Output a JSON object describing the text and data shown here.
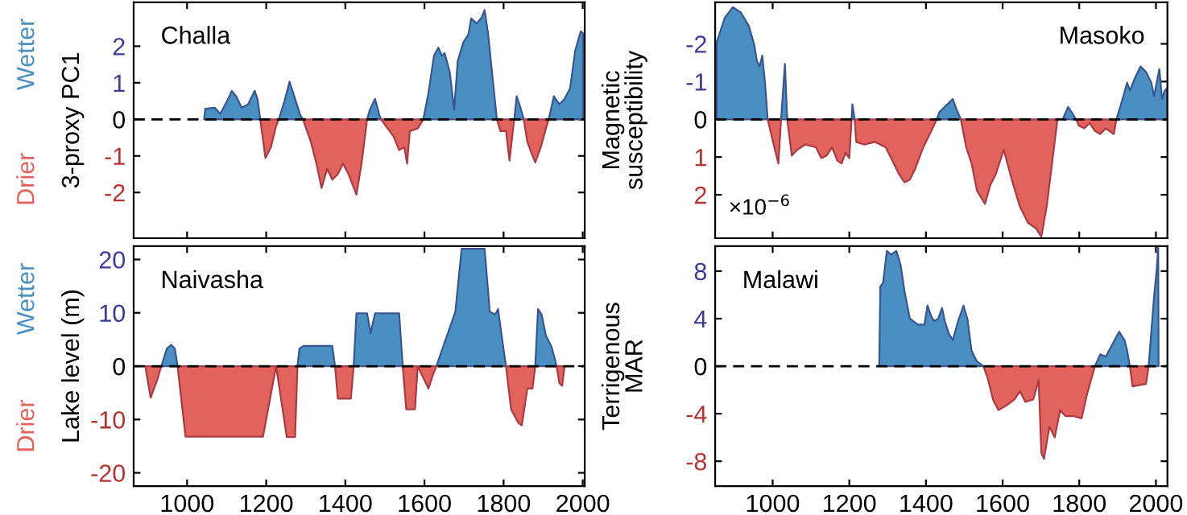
{
  "chart_data": [
    {
      "type": "area",
      "title": "Challa",
      "ylabel": "3-proxy PC1",
      "xlim": [
        865,
        2005
      ],
      "ylim": [
        -3.25,
        3.2
      ],
      "xticks": [
        1000,
        1200,
        1400,
        1600,
        1800,
        2000
      ],
      "yticks": [
        -2,
        -1,
        0,
        1,
        2
      ],
      "tick_labels": "y",
      "ref_lines": [
        {
          "axis": "y",
          "value": 0,
          "line_style": "dashed",
          "color": "#000000"
        }
      ],
      "x": [
        1043,
        1046,
        1070,
        1084,
        1104,
        1113,
        1124,
        1138,
        1154,
        1171,
        1178,
        1185,
        1198,
        1212,
        1225,
        1232,
        1246,
        1259,
        1273,
        1286,
        1293,
        1313,
        1327,
        1340,
        1354,
        1367,
        1381,
        1394,
        1408,
        1428,
        1441,
        1455,
        1462,
        1475,
        1486,
        1490,
        1522,
        1536,
        1549,
        1556,
        1563,
        1583,
        1597,
        1610,
        1624,
        1635,
        1644,
        1651,
        1664,
        1675,
        1684,
        1698,
        1711,
        1718,
        1732,
        1745,
        1752,
        1761,
        1772,
        1783,
        1792,
        1806,
        1815,
        1824,
        1827,
        1833,
        1842,
        1851,
        1860,
        1873,
        1880,
        1894,
        1907,
        1914,
        1927,
        1941,
        1954,
        1968,
        1981,
        1995,
        2001
      ],
      "series": [
        {
          "name": "Wetter",
          "color": "#4a8fc2",
          "values": [
            0,
            0.29,
            0.32,
            0.15,
            0.56,
            0.78,
            0.63,
            0.32,
            0.41,
            0.78,
            0.56,
            0,
            null,
            null,
            null,
            0,
            0.49,
            1.03,
            0.56,
            0.12,
            0,
            null,
            null,
            null,
            null,
            null,
            null,
            null,
            null,
            null,
            null,
            0,
            0.26,
            0.56,
            0.12,
            0,
            null,
            null,
            null,
            null,
            null,
            null,
            0,
            0.71,
            1.74,
            1.96,
            1.74,
            1.81,
            1.29,
            0.26,
            1.59,
            2.1,
            2.32,
            2.76,
            2.62,
            2.79,
            2.99,
            2.32,
            1.15,
            0,
            null,
            null,
            null,
            null,
            0,
            0.63,
            0.34,
            0,
            null,
            null,
            null,
            null,
            null,
            0,
            0.63,
            0.41,
            0.56,
            0.85,
            1.88,
            2.41,
            2.35
          ]
        },
        {
          "name": "Drier",
          "color": "#e2625c",
          "values": [
            null,
            null,
            null,
            null,
            null,
            null,
            null,
            null,
            null,
            null,
            null,
            0,
            -1.06,
            -0.76,
            -0.18,
            0,
            null,
            null,
            null,
            null,
            0,
            -0.62,
            -1.21,
            -1.88,
            -1.35,
            -1.65,
            -1.5,
            -1.21,
            -1.5,
            -2.06,
            -1.21,
            0,
            null,
            null,
            null,
            0,
            -0.47,
            -0.84,
            -0.76,
            -1.21,
            -0.32,
            -0.25,
            0,
            null,
            null,
            null,
            null,
            null,
            null,
            null,
            null,
            null,
            null,
            null,
            null,
            null,
            null,
            null,
            null,
            0,
            -0.32,
            -0.32,
            -1.13,
            -0.25,
            0,
            null,
            null,
            0,
            -0.62,
            -0.99,
            -1.18,
            -0.76,
            -0.25,
            0,
            null,
            null,
            null,
            null,
            null,
            null,
            null
          ]
        }
      ]
    },
    {
      "type": "area",
      "title": "Masoko",
      "ylabel": "Magnetic\nsusceptibility",
      "annotations": [
        "×10$^{−6}$"
      ],
      "xlim": [
        850,
        2030
      ],
      "ylim": [
        3.15,
        -3.1
      ],
      "xticks": [
        1000,
        1200,
        1400,
        1600,
        1800,
        2000
      ],
      "yticks": [
        -2,
        -1,
        0,
        1,
        2
      ],
      "tick_labels": "y",
      "ref_lines": [
        {
          "axis": "y",
          "value": 0,
          "line_style": "dashed",
          "color": "#000000"
        }
      ],
      "x": [
        854,
        875,
        896,
        917,
        938,
        952,
        959,
        966,
        973,
        980,
        987,
        1001,
        1015,
        1022,
        1032,
        1038,
        1050,
        1064,
        1085,
        1113,
        1127,
        1141,
        1155,
        1169,
        1180,
        1190,
        1200,
        1206,
        1208,
        1214,
        1218,
        1239,
        1267,
        1295,
        1316,
        1330,
        1344,
        1358,
        1372,
        1393,
        1414,
        1428,
        1435,
        1449,
        1470,
        1480,
        1491,
        1505,
        1519,
        1533,
        1554,
        1568,
        1582,
        1603,
        1624,
        1645,
        1666,
        1687,
        1701,
        1715,
        1729,
        1743,
        1757,
        1771,
        1785,
        1792,
        1799,
        1813,
        1827,
        1841,
        1855,
        1869,
        1890,
        1897,
        1911,
        1925,
        1932,
        1946,
        1960,
        1974,
        1988,
        1995,
        2002,
        2009,
        2016,
        2023,
        2030
      ],
      "series": [
        {
          "color": "#4a8fc2",
          "values": [
            -2.04,
            -2.69,
            -2.97,
            -2.83,
            -2.47,
            -1.97,
            -1.54,
            -1.4,
            -1.69,
            -0.97,
            0,
            null,
            null,
            0,
            -1.47,
            0,
            null,
            null,
            null,
            null,
            null,
            null,
            null,
            null,
            null,
            null,
            null,
            0,
            -0.4,
            0,
            null,
            null,
            null,
            null,
            null,
            null,
            null,
            null,
            null,
            null,
            null,
            0,
            -0.19,
            -0.33,
            -0.54,
            -0.26,
            0,
            null,
            null,
            null,
            null,
            null,
            null,
            null,
            null,
            null,
            null,
            null,
            null,
            null,
            null,
            null,
            0,
            -0.33,
            -0.11,
            0,
            null,
            null,
            null,
            null,
            null,
            null,
            null,
            0,
            -0.47,
            -0.97,
            -0.76,
            -1.11,
            -1.4,
            -1.26,
            -0.97,
            -0.61,
            -0.97,
            -1.33,
            -0.54,
            -0.76,
            -0.83
          ]
        },
        {
          "color": "#e2625c",
          "values": [
            null,
            null,
            null,
            null,
            null,
            null,
            null,
            null,
            null,
            null,
            0,
            0.6,
            1.17,
            0,
            null,
            0,
            0.96,
            0.81,
            0.67,
            0.74,
            1.03,
            0.96,
            0.74,
            1.1,
            1.17,
            0.89,
            1.03,
            0,
            null,
            0,
            0.6,
            0.67,
            0.6,
            0.74,
            1.17,
            1.46,
            1.67,
            1.6,
            1.31,
            0.74,
            0.31,
            0,
            null,
            null,
            null,
            null,
            0,
            0.74,
            1.17,
            1.89,
            2.24,
            1.74,
            1.46,
            0.81,
            1.6,
            2.31,
            2.74,
            2.89,
            3.11,
            2.31,
            1.17,
            0,
            null,
            null,
            null,
            0,
            0.17,
            0.24,
            0.1,
            0.31,
            0.39,
            0.24,
            0.39,
            0,
            null,
            null,
            null,
            null,
            null,
            null,
            null,
            null,
            null,
            null,
            null,
            null,
            null
          ]
        }
      ]
    },
    {
      "type": "area",
      "title": "Naivasha",
      "ylabel": "Lake level (m)",
      "xlim": [
        865,
        2005
      ],
      "ylim": [
        -22.5,
        22.5
      ],
      "xticks": [
        1000,
        1200,
        1400,
        1600,
        1800,
        2000
      ],
      "yticks": [
        -20,
        -10,
        0,
        10,
        20
      ],
      "ref_lines": [
        {
          "axis": "y",
          "value": 0,
          "line_style": "dashed",
          "color": "#000000"
        }
      ],
      "x": [
        895,
        897,
        908,
        924,
        935,
        949,
        960,
        969,
        976,
        996,
        1192,
        1225,
        1252,
        1273,
        1279,
        1284,
        1294,
        1313,
        1327,
        1367,
        1374,
        1381,
        1414,
        1421,
        1428,
        1455,
        1464,
        1475,
        1536,
        1545,
        1554,
        1576,
        1583,
        1610,
        1621,
        1630,
        1678,
        1694,
        1752,
        1765,
        1779,
        1786,
        1797,
        1806,
        1819,
        1837,
        1846,
        1860,
        1873,
        1880,
        1887,
        1896,
        1907,
        1914,
        1921,
        1934,
        1941,
        1948,
        1954
      ],
      "series": [
        {
          "name": "Wetter",
          "color": "#4a8fc2",
          "values": [
            null,
            null,
            null,
            null,
            0,
            3.3,
            4.0,
            3.3,
            0,
            null,
            null,
            null,
            null,
            null,
            0,
            3.3,
            3.8,
            3.8,
            3.8,
            3.8,
            0,
            null,
            null,
            0,
            9.9,
            9.9,
            6.2,
            9.9,
            9.9,
            0,
            null,
            null,
            null,
            null,
            null,
            0,
            10.2,
            22,
            22,
            10.2,
            9.7,
            10.7,
            4.7,
            0,
            null,
            null,
            null,
            null,
            null,
            0,
            10.7,
            9.7,
            5.7,
            4.7,
            3.7,
            0,
            null,
            null,
            null
          ]
        },
        {
          "name": "Drier",
          "color": "#e2625c",
          "values": [
            0,
            -1.2,
            -5.9,
            -2.7,
            0,
            null,
            null,
            null,
            0,
            -13.2,
            -13.2,
            0,
            -13.3,
            -13.3,
            0,
            null,
            null,
            null,
            null,
            null,
            0,
            -6.1,
            -6.1,
            0,
            null,
            null,
            null,
            null,
            null,
            0,
            -8.1,
            -8.1,
            0,
            -4.2,
            -1.7,
            0,
            null,
            null,
            null,
            null,
            null,
            null,
            null,
            0,
            -8.1,
            -10.6,
            -11.1,
            -4.2,
            -4.2,
            0,
            null,
            null,
            null,
            null,
            null,
            0,
            -3.2,
            -3.7,
            0
          ]
        }
      ]
    },
    {
      "type": "area",
      "title": "Malawi",
      "ylabel": "Terrigenous\nMAR",
      "xlim": [
        850,
        2030
      ],
      "ylim": [
        -10.1,
        10.1
      ],
      "xticks": [
        1000,
        1200,
        1400,
        1600,
        1800,
        2000
      ],
      "yticks": [
        -8,
        -4,
        0,
        4,
        8
      ],
      "ref_lines": [
        {
          "axis": "y",
          "value": 0,
          "line_style": "dashed",
          "color": "#000000"
        }
      ],
      "x": [
        1278,
        1281,
        1288,
        1298,
        1309,
        1323,
        1334,
        1344,
        1358,
        1379,
        1396,
        1404,
        1414,
        1421,
        1432,
        1442,
        1449,
        1460,
        1470,
        1484,
        1498,
        1508,
        1519,
        1533,
        1550,
        1561,
        1575,
        1589,
        1610,
        1631,
        1645,
        1659,
        1680,
        1694,
        1701,
        1708,
        1722,
        1736,
        1750,
        1764,
        1785,
        1806,
        1820,
        1841,
        1855,
        1869,
        1904,
        1918,
        1925,
        1932,
        1939,
        1974,
        1981,
        1995,
        2002,
        2006,
        2007
      ],
      "series": [
        {
          "color": "#4a8fc2",
          "values": [
            0,
            6.7,
            7.0,
            9.7,
            9.4,
            9.7,
            8.5,
            6.3,
            4.0,
            3.5,
            3.5,
            5.1,
            4.2,
            3.8,
            4.0,
            4.9,
            3.8,
            2.7,
            2.2,
            3.8,
            5.1,
            4.0,
            1.3,
            0.4,
            0,
            null,
            null,
            null,
            null,
            null,
            null,
            null,
            null,
            null,
            null,
            null,
            null,
            null,
            null,
            null,
            null,
            null,
            null,
            0,
            1.0,
            0.8,
            2.9,
            2.2,
            1.3,
            0,
            null,
            null,
            0,
            5.8,
            8.1,
            10.0,
            0
          ]
        },
        {
          "color": "#e2625c",
          "values": [
            null,
            null,
            null,
            null,
            null,
            null,
            null,
            null,
            null,
            null,
            null,
            null,
            null,
            null,
            null,
            null,
            null,
            null,
            null,
            null,
            null,
            null,
            null,
            null,
            0,
            -1.0,
            -2.8,
            -3.7,
            -3.3,
            -2.8,
            -2.1,
            -3.0,
            -2.8,
            -1.2,
            -7.3,
            -7.8,
            -5.1,
            -6.0,
            -3.7,
            -4.2,
            -4.2,
            -4.4,
            -2.4,
            0,
            null,
            null,
            null,
            null,
            null,
            0,
            -1.7,
            -1.5,
            0,
            null,
            null,
            null,
            null
          ]
        }
      ]
    }
  ]
}
